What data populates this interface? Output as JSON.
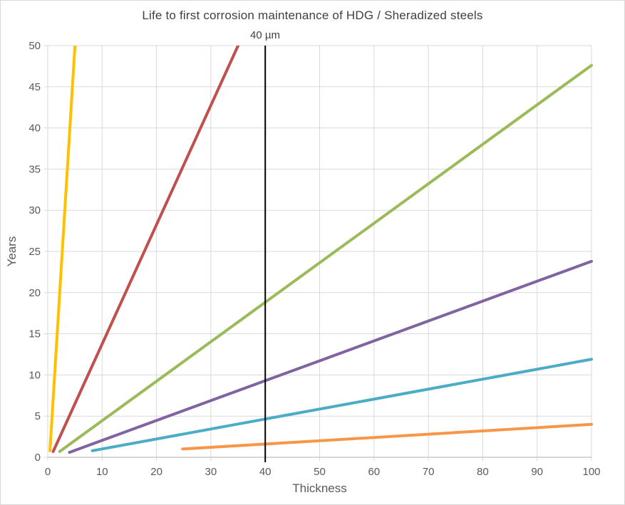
{
  "window": {
    "title": "Life to first corrosion maintenance of HDG / Sheradized steels"
  },
  "chart_data": {
    "type": "line",
    "title": "Life to first corrosion maintenance of HDG / Sheradized steels",
    "xlabel": "Thickness",
    "ylabel": "Years",
    "xlim": [
      0,
      100
    ],
    "ylim": [
      0,
      50
    ],
    "xticks": [
      0,
      10,
      20,
      30,
      40,
      50,
      60,
      70,
      80,
      90,
      100
    ],
    "yticks": [
      0,
      5,
      10,
      15,
      20,
      25,
      30,
      35,
      40,
      45,
      50
    ],
    "grid": true,
    "legend": "none",
    "annotation": {
      "label": "40 µm",
      "x": 40
    },
    "reference_line": {
      "x": 40,
      "color": "#000000"
    },
    "series": [
      {
        "name": "yellow-steepest",
        "color": "#FFC000",
        "points": [
          [
            0.4,
            0.8
          ],
          [
            5,
            50
          ]
        ]
      },
      {
        "name": "red",
        "color": "#C0504D",
        "points": [
          [
            1,
            0.7
          ],
          [
            35,
            50
          ]
        ]
      },
      {
        "name": "green",
        "color": "#9BBB59",
        "points": [
          [
            2.2,
            0.7
          ],
          [
            100,
            47.6
          ]
        ]
      },
      {
        "name": "purple",
        "color": "#8064A2",
        "points": [
          [
            4,
            0.6
          ],
          [
            100,
            23.8
          ]
        ]
      },
      {
        "name": "blue",
        "color": "#4BACC6",
        "points": [
          [
            8.2,
            0.8
          ],
          [
            100,
            11.9
          ]
        ]
      },
      {
        "name": "orange-flattest",
        "color": "#F79646",
        "points": [
          [
            24.8,
            1.0
          ],
          [
            100,
            4.0
          ]
        ]
      }
    ]
  },
  "colors": {
    "background": "#FFFFFF",
    "frame_border": "#D9D9D9",
    "gridline": "#D9D9D9",
    "axis_line": "#BFBFBF",
    "tick_label": "#595959",
    "title": "#404040",
    "reference_line": "#000000"
  }
}
